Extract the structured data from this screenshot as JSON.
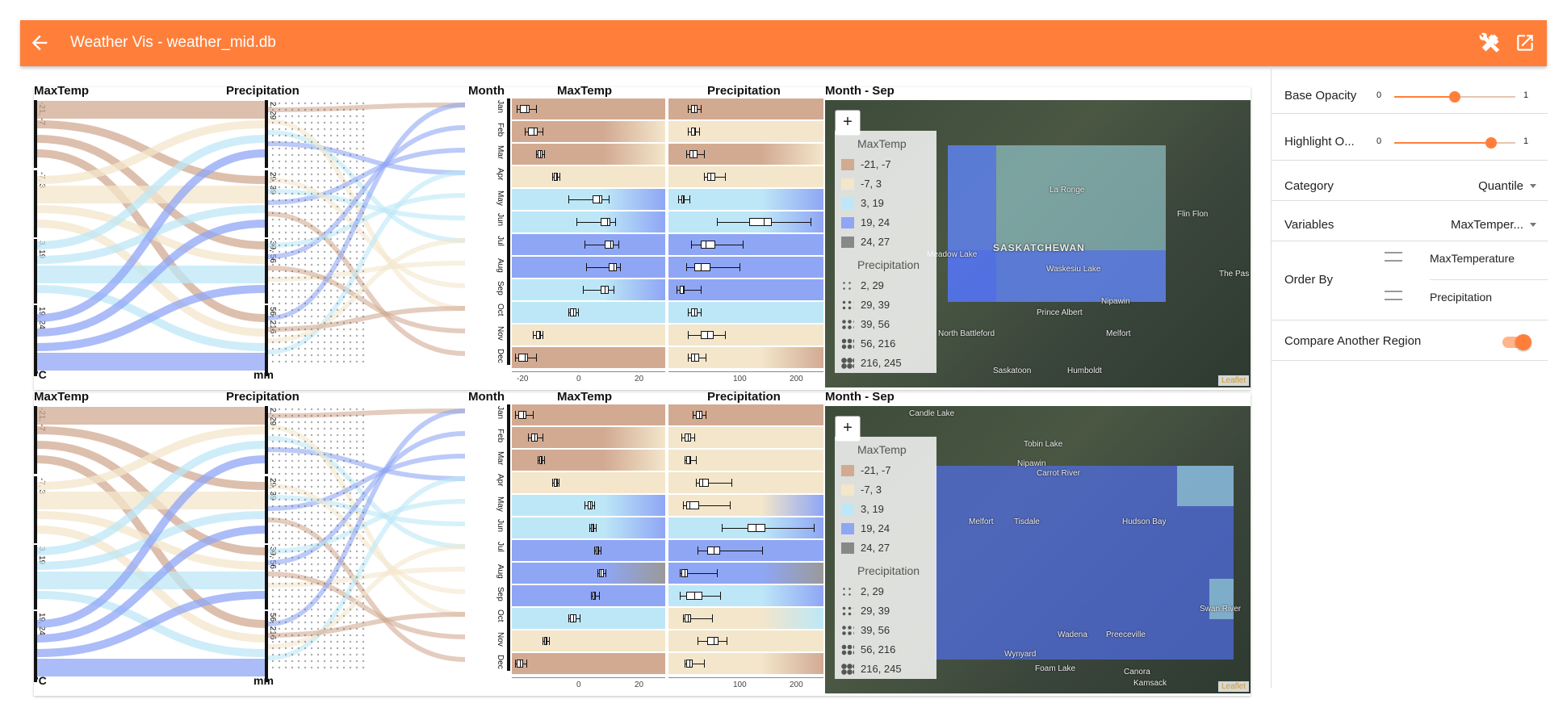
{
  "app": {
    "title": "Weather Vis - weather_mid.db",
    "back_icon": "arrow-left-icon",
    "tools_icon": "tools-icon",
    "popout_icon": "open-in-new-icon",
    "accent": "#FF7F3A"
  },
  "colors": {
    "brown": "#D2AA92",
    "cream": "#F3E6CB",
    "lightblue": "#BDE7F7",
    "blue": "#8FA6F5",
    "gray": "#9a9a9a"
  },
  "panels": [
    {
      "headers": {
        "maxtemp": "MaxTemp",
        "precip": "Precipitation",
        "month": "Month",
        "box_maxtemp": "MaxTemp",
        "box_precip": "Precipitation",
        "map_title": "Month - Sep"
      },
      "units": {
        "temp": "°C",
        "precip": "mm"
      },
      "temp_segments": [
        "-21, -7",
        "-7, 3",
        "3, 19",
        "19, 24"
      ],
      "precip_segments": [
        "2, 29",
        "29, 39",
        "39, 56",
        "56, 216"
      ],
      "months": [
        "Jan",
        "Feb",
        "Mar",
        "Apr",
        "May",
        "Jun",
        "Jul",
        "Aug",
        "Sep",
        "Oct",
        "Nov",
        "Dec"
      ],
      "temp_ticks": [
        "-20",
        "0",
        "20"
      ],
      "precip_ticks": [
        "100",
        "200"
      ],
      "legend": {
        "title1": "MaxTemp",
        "items1": [
          "-21, -7",
          "-7, 3",
          "3, 19",
          "19, 24",
          "24, 27"
        ],
        "title2": "Precipitation",
        "items2": [
          "2, 29",
          "29, 39",
          "39, 56",
          "56, 216",
          "216, 245"
        ]
      },
      "places": [
        "SASKATCHEWAN",
        "La Ronge",
        "Flin Flon",
        "The Pas",
        "Waskesiu Lake",
        "Meadow Lake",
        "Prince Albert",
        "Nipawin",
        "North Battleford",
        "Melfort",
        "Saskatoon",
        "Humboldt"
      ],
      "zoom": "+",
      "attribution": "Leaflet"
    },
    {
      "headers": {
        "maxtemp": "MaxTemp",
        "precip": "Precipitation",
        "month": "Month",
        "box_maxtemp": "MaxTemp",
        "box_precip": "Precipitation",
        "map_title": "Month - Sep"
      },
      "units": {
        "temp": "°C",
        "precip": "mm"
      },
      "temp_segments": [
        "-21, -7",
        "-7, 3",
        "3, 19",
        "19, 24"
      ],
      "precip_segments": [
        "2, 29",
        "29, 39",
        "39, 56",
        "56, 216"
      ],
      "months": [
        "Jan",
        "Feb",
        "Mar",
        "Apr",
        "May",
        "Jun",
        "Jul",
        "Aug",
        "Sep",
        "Oct",
        "Nov",
        "Dec"
      ],
      "temp_ticks": [
        "0",
        "20"
      ],
      "precip_ticks": [
        "100",
        "200"
      ],
      "legend": {
        "title1": "MaxTemp",
        "items1": [
          "-21, -7",
          "-7, 3",
          "3, 19",
          "19, 24",
          "24, 27"
        ],
        "title2": "Precipitation",
        "items2": [
          "2, 29",
          "29, 39",
          "39, 56",
          "56, 216",
          "216, 245"
        ]
      },
      "places": [
        "Candle Lake",
        "Tobin Lake",
        "Nipawin",
        "Carrot River",
        "Melfort",
        "Tisdale",
        "Hudson Bay",
        "Wynyard",
        "Foam Lake",
        "Canora",
        "Kamsack",
        "Wadena",
        "Preeceville",
        "Swan River"
      ],
      "zoom": "+",
      "attribution": "Leaflet"
    }
  ],
  "sidebar": {
    "base_opacity": {
      "label": "Base Opacity",
      "min": "0",
      "max": "1",
      "value": 0.5
    },
    "highlight_opacity": {
      "label": "Highlight O...",
      "min": "0",
      "max": "1",
      "value": 0.8
    },
    "category": {
      "label": "Category",
      "value": "Quantile"
    },
    "variables": {
      "label": "Variables",
      "value": "MaxTemper..."
    },
    "order_by": {
      "label": "Order By",
      "items": [
        "MaxTemperature",
        "Precipitation"
      ]
    },
    "compare": {
      "label": "Compare Another Region",
      "on": true
    }
  }
}
